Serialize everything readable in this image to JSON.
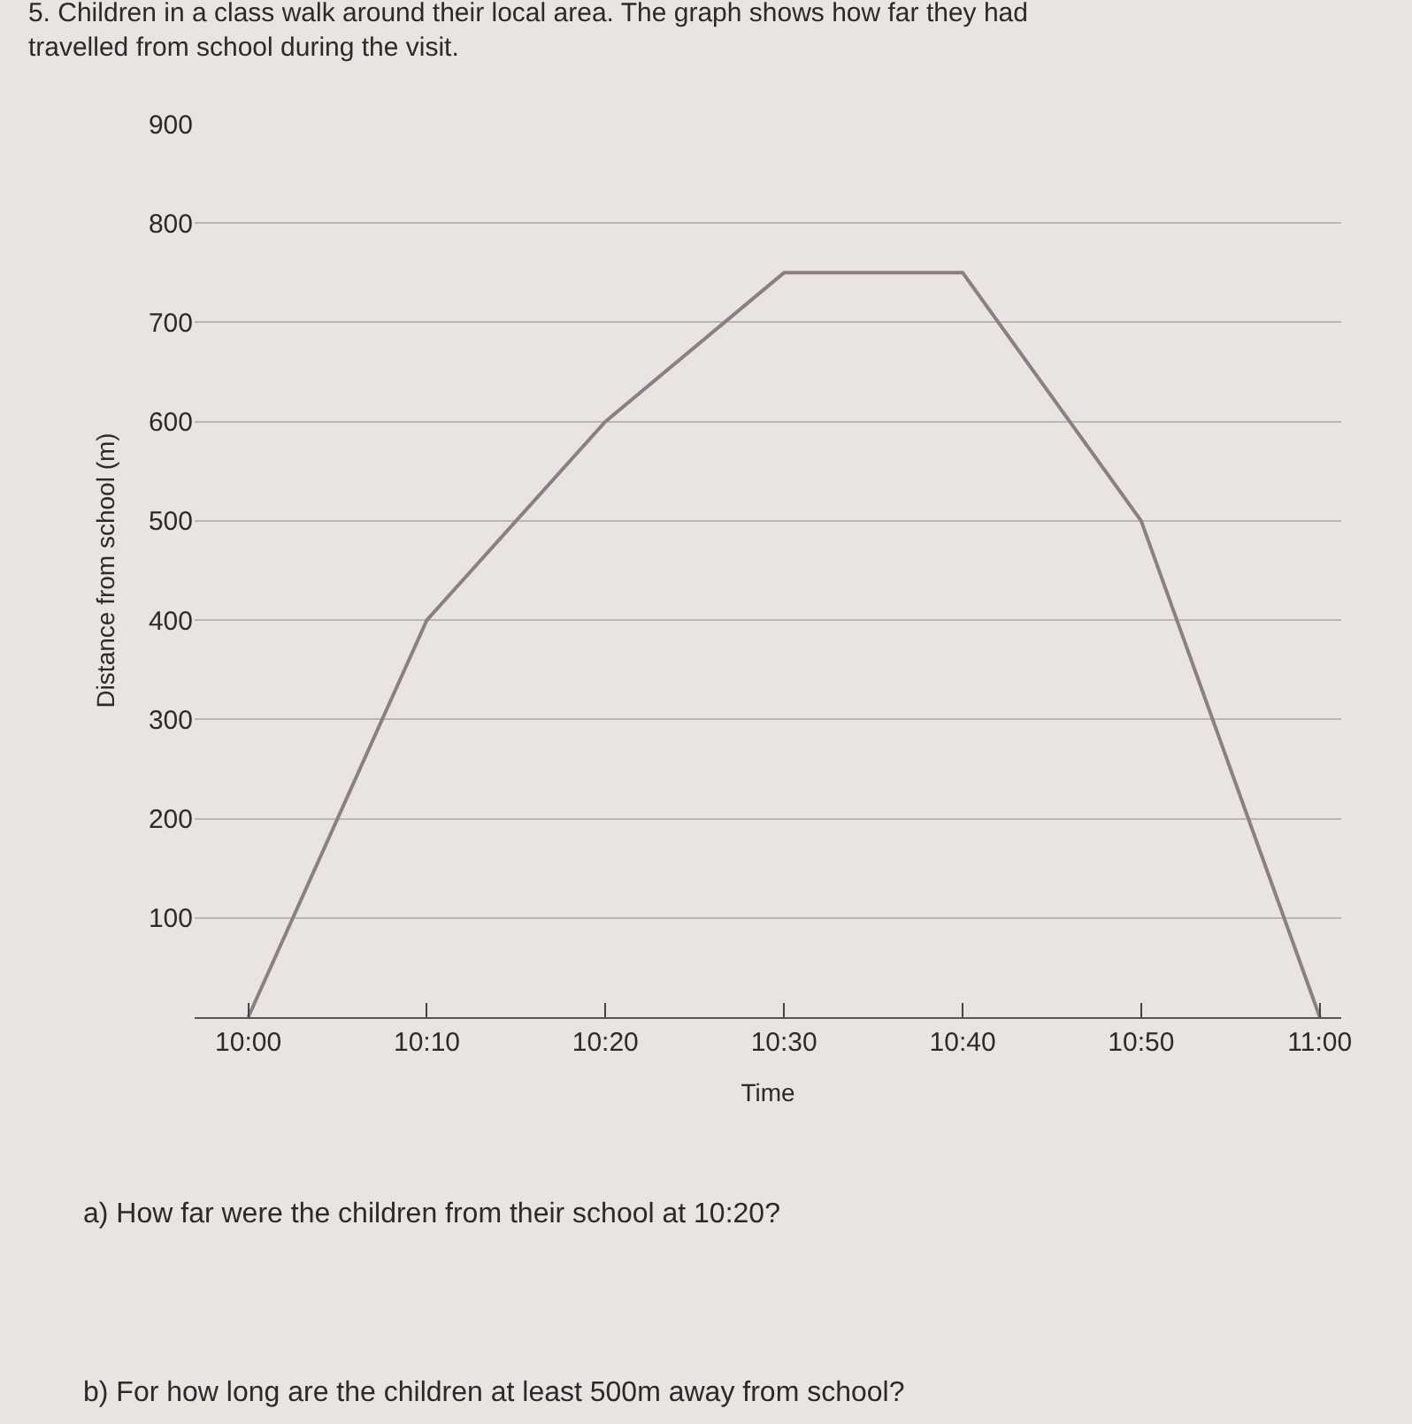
{
  "chart_data": {
    "type": "line",
    "title": "5. Children in a class walk around their local area. The graph shows how far they had travelled from school during the visit.",
    "xlabel": "Time",
    "ylabel": "Distance from school (m)",
    "x": [
      10,
      10.1667,
      10.3333,
      10.5,
      10.6667,
      10.8333,
      11
    ],
    "series": [
      {
        "color": "#8a7f84",
        "values": [
          0,
          400,
          600,
          750,
          750,
          500,
          0
        ]
      }
    ],
    "xlim": [
      9.95,
      11.02
    ],
    "xticks": [
      {
        "value": 10,
        "label": "10:00"
      },
      {
        "value": 10.1667,
        "label": "10:10"
      },
      {
        "value": 10.3333,
        "label": "10:20"
      },
      {
        "value": 10.5,
        "label": "10:30"
      },
      {
        "value": 10.6667,
        "label": "10:40"
      },
      {
        "value": 10.8333,
        "label": "10:50"
      },
      {
        "value": 11,
        "label": "11:00"
      }
    ],
    "ylim": [
      0,
      900
    ],
    "yticks": [
      100,
      200,
      300,
      400,
      500,
      600,
      700,
      800,
      900
    ],
    "grid": "y",
    "marker": "none",
    "line_style": "solid",
    "annotations": [
      "a) How far were the children from their school at 10:20?",
      "b) For how long are the children at least 500m away from school?"
    ]
  }
}
